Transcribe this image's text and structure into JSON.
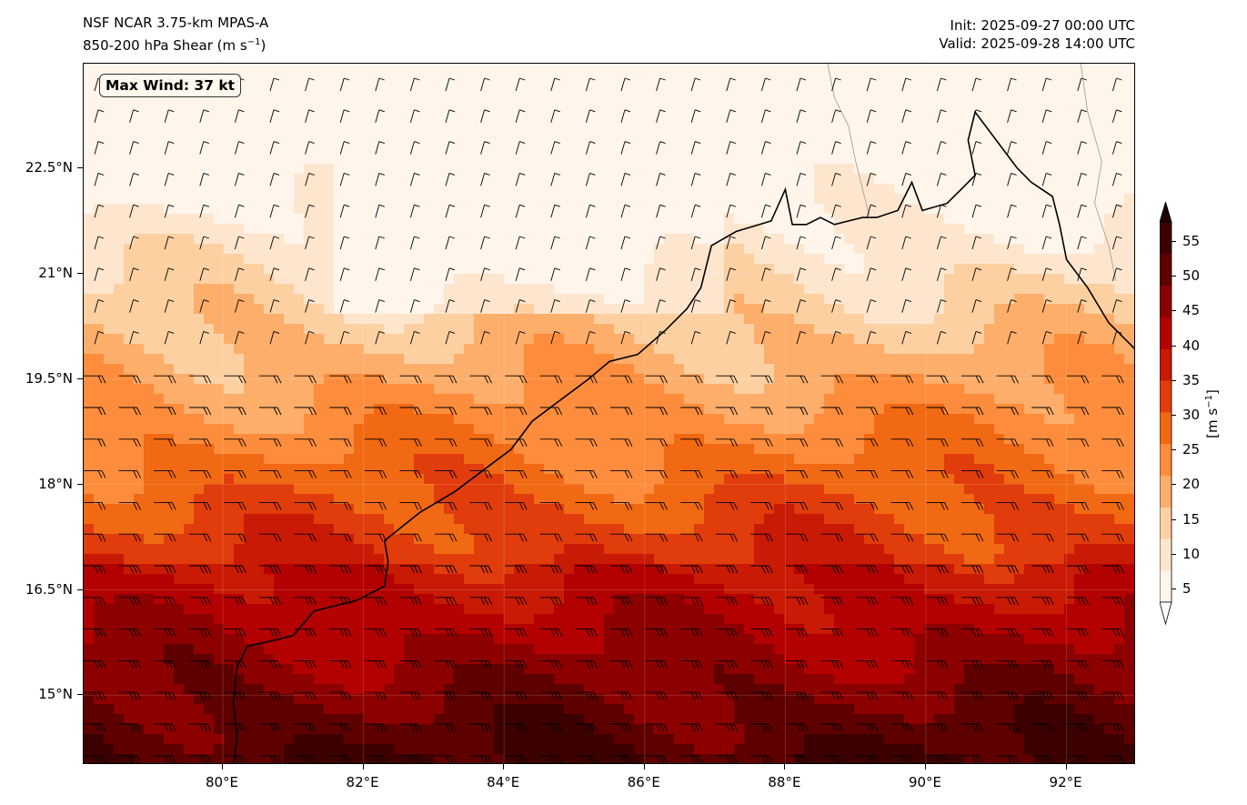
{
  "title": {
    "line1": "NSF NCAR 3.75-km MPAS-A",
    "line2_prefix": "850-200 hPa Shear (m s",
    "line2_sup": "−1",
    "line2_suffix": ")"
  },
  "timing": {
    "init": "Init: 2025-09-27 00:00 UTC",
    "valid": "Valid: 2025-09-28 14:00 UTC"
  },
  "annotation": {
    "max_wind": "Max Wind: 37 kt"
  },
  "axes": {
    "lon_range": [
      78.0,
      93.0
    ],
    "lat_range": [
      14.0,
      24.0
    ],
    "lat_ticks": [
      {
        "value": 22.5,
        "label": "22.5°N"
      },
      {
        "value": 21.0,
        "label": "21°N"
      },
      {
        "value": 19.5,
        "label": "19.5°N"
      },
      {
        "value": 18.0,
        "label": "18°N"
      },
      {
        "value": 16.5,
        "label": "16.5°N"
      },
      {
        "value": 15.0,
        "label": "15°N"
      }
    ],
    "lon_ticks": [
      {
        "value": 80,
        "label": "80°E"
      },
      {
        "value": 82,
        "label": "82°E"
      },
      {
        "value": 84,
        "label": "84°E"
      },
      {
        "value": 86,
        "label": "86°E"
      },
      {
        "value": 88,
        "label": "88°E"
      },
      {
        "value": 90,
        "label": "90°E"
      },
      {
        "value": 92,
        "label": "92°E"
      }
    ]
  },
  "colorbar": {
    "unit_prefix": "[m s",
    "unit_sup": "−1",
    "unit_suffix": "]",
    "levels": [
      5,
      10,
      15,
      20,
      25,
      30,
      35,
      40,
      45,
      50,
      55
    ],
    "labels": [
      "5",
      "10",
      "15",
      "20",
      "25",
      "30",
      "35",
      "40",
      "45",
      "50",
      "55"
    ],
    "colors": [
      "#ffffff",
      "#fff5eb",
      "#fee6ce",
      "#fdd0a2",
      "#fdae6b",
      "#fd8d3c",
      "#f16913",
      "#e03c0c",
      "#c81a04",
      "#b30000",
      "#8c0000",
      "#5e0000",
      "#3d0000",
      "#1a0000"
    ],
    "extend": "both"
  },
  "legend_colors": {
    "coastline": "#000000",
    "border": "#999999",
    "frame": "#000000"
  }
}
